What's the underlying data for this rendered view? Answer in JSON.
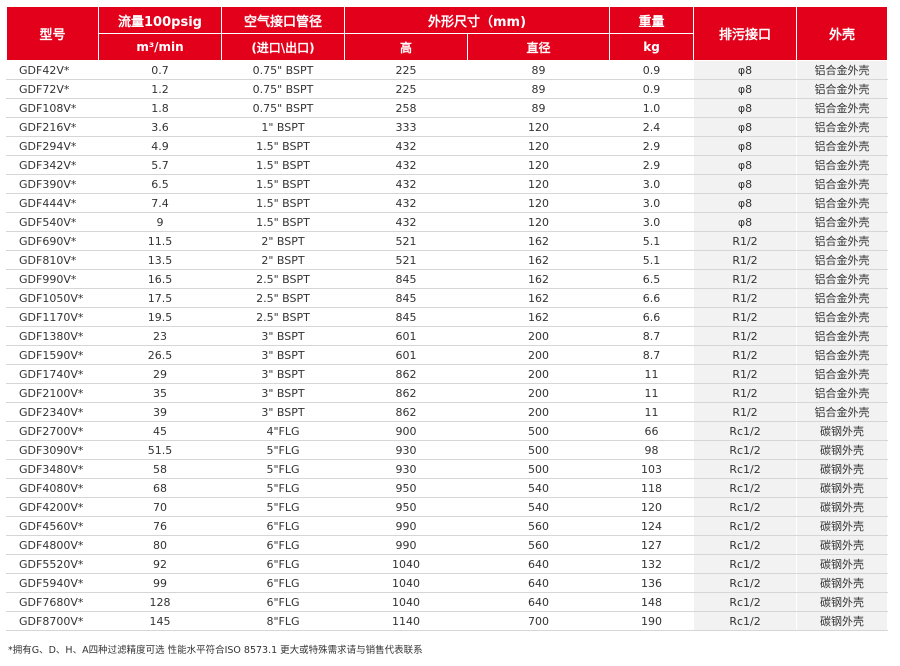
{
  "header": {
    "model": "型号",
    "flow": "流量100psig",
    "flow_unit": "m³/min",
    "port": "空气接口管径",
    "port_sub": "(进口\\出口)",
    "dims": "外形尺寸（mm)",
    "height": "高",
    "diameter": "直径",
    "weight": "重量",
    "weight_unit": "kg",
    "drain": "排污接口",
    "housing": "外壳"
  },
  "colors": {
    "header_bg": "#e3001b",
    "shaded_cell": "#f2f2f2"
  },
  "rows": [
    {
      "model": "GDF42V*",
      "flow": "0.7",
      "port": "0.75\" BSPT",
      "height": "225",
      "diameter": "89",
      "weight": "0.9",
      "drain": "φ8",
      "housing": "铝合金外壳"
    },
    {
      "model": "GDF72V*",
      "flow": "1.2",
      "port": "0.75\" BSPT",
      "height": "225",
      "diameter": "89",
      "weight": "0.9",
      "drain": "φ8",
      "housing": "铝合金外壳"
    },
    {
      "model": "GDF108V*",
      "flow": "1.8",
      "port": "0.75\" BSPT",
      "height": "258",
      "diameter": "89",
      "weight": "1.0",
      "drain": "φ8",
      "housing": "铝合金外壳"
    },
    {
      "model": "GDF216V*",
      "flow": "3.6",
      "port": "1\" BSPT",
      "height": "333",
      "diameter": "120",
      "weight": "2.4",
      "drain": "φ8",
      "housing": "铝合金外壳"
    },
    {
      "model": "GDF294V*",
      "flow": "4.9",
      "port": "1.5\" BSPT",
      "height": "432",
      "diameter": "120",
      "weight": "2.9",
      "drain": "φ8",
      "housing": "铝合金外壳"
    },
    {
      "model": "GDF342V*",
      "flow": "5.7",
      "port": "1.5\" BSPT",
      "height": "432",
      "diameter": "120",
      "weight": "2.9",
      "drain": "φ8",
      "housing": "铝合金外壳"
    },
    {
      "model": "GDF390V*",
      "flow": "6.5",
      "port": "1.5\" BSPT",
      "height": "432",
      "diameter": "120",
      "weight": "3.0",
      "drain": "φ8",
      "housing": "铝合金外壳"
    },
    {
      "model": "GDF444V*",
      "flow": "7.4",
      "port": "1.5\" BSPT",
      "height": "432",
      "diameter": "120",
      "weight": "3.0",
      "drain": "φ8",
      "housing": "铝合金外壳"
    },
    {
      "model": "GDF540V*",
      "flow": "9",
      "port": "1.5\" BSPT",
      "height": "432",
      "diameter": "120",
      "weight": "3.0",
      "drain": "φ8",
      "housing": "铝合金外壳"
    },
    {
      "model": "GDF690V*",
      "flow": "11.5",
      "port": "2\" BSPT",
      "height": "521",
      "diameter": "162",
      "weight": "5.1",
      "drain": "R1/2",
      "housing": "铝合金外壳"
    },
    {
      "model": "GDF810V*",
      "flow": "13.5",
      "port": "2\" BSPT",
      "height": "521",
      "diameter": "162",
      "weight": "5.1",
      "drain": "R1/2",
      "housing": "铝合金外壳"
    },
    {
      "model": "GDF990V*",
      "flow": "16.5",
      "port": "2.5\" BSPT",
      "height": "845",
      "diameter": "162",
      "weight": "6.5",
      "drain": "R1/2",
      "housing": "铝合金外壳"
    },
    {
      "model": "GDF1050V*",
      "flow": "17.5",
      "port": "2.5\" BSPT",
      "height": "845",
      "diameter": "162",
      "weight": "6.6",
      "drain": "R1/2",
      "housing": "铝合金外壳"
    },
    {
      "model": "GDF1170V*",
      "flow": "19.5",
      "port": "2.5\" BSPT",
      "height": "845",
      "diameter": "162",
      "weight": "6.6",
      "drain": "R1/2",
      "housing": "铝合金外壳"
    },
    {
      "model": "GDF1380V*",
      "flow": "23",
      "port": "3\" BSPT",
      "height": "601",
      "diameter": "200",
      "weight": "8.7",
      "drain": "R1/2",
      "housing": "铝合金外壳"
    },
    {
      "model": "GDF1590V*",
      "flow": "26.5",
      "port": "3\" BSPT",
      "height": "601",
      "diameter": "200",
      "weight": "8.7",
      "drain": "R1/2",
      "housing": "铝合金外壳"
    },
    {
      "model": "GDF1740V*",
      "flow": "29",
      "port": "3\" BSPT",
      "height": "862",
      "diameter": "200",
      "weight": "11",
      "drain": "R1/2",
      "housing": "铝合金外壳"
    },
    {
      "model": "GDF2100V*",
      "flow": "35",
      "port": "3\" BSPT",
      "height": "862",
      "diameter": "200",
      "weight": "11",
      "drain": "R1/2",
      "housing": "铝合金外壳"
    },
    {
      "model": "GDF2340V*",
      "flow": "39",
      "port": "3\" BSPT",
      "height": "862",
      "diameter": "200",
      "weight": "11",
      "drain": "R1/2",
      "housing": "铝合金外壳"
    },
    {
      "model": "GDF2700V*",
      "flow": "45",
      "port": "4\"FLG",
      "height": "900",
      "diameter": "500",
      "weight": "66",
      "drain": "Rc1/2",
      "housing": "碳钢外壳"
    },
    {
      "model": "GDF3090V*",
      "flow": "51.5",
      "port": "5\"FLG",
      "height": "930",
      "diameter": "500",
      "weight": "98",
      "drain": "Rc1/2",
      "housing": "碳钢外壳"
    },
    {
      "model": "GDF3480V*",
      "flow": "58",
      "port": "5\"FLG",
      "height": "930",
      "diameter": "500",
      "weight": "103",
      "drain": "Rc1/2",
      "housing": "碳钢外壳"
    },
    {
      "model": "GDF4080V*",
      "flow": "68",
      "port": "5\"FLG",
      "height": "950",
      "diameter": "540",
      "weight": "118",
      "drain": "Rc1/2",
      "housing": "碳钢外壳"
    },
    {
      "model": "GDF4200V*",
      "flow": "70",
      "port": "5\"FLG",
      "height": "950",
      "diameter": "540",
      "weight": "120",
      "drain": "Rc1/2",
      "housing": "碳钢外壳"
    },
    {
      "model": "GDF4560V*",
      "flow": "76",
      "port": "6\"FLG",
      "height": "990",
      "diameter": "560",
      "weight": "124",
      "drain": "Rc1/2",
      "housing": "碳钢外壳"
    },
    {
      "model": "GDF4800V*",
      "flow": "80",
      "port": "6\"FLG",
      "height": "990",
      "diameter": "560",
      "weight": "127",
      "drain": "Rc1/2",
      "housing": "碳钢外壳"
    },
    {
      "model": "GDF5520V*",
      "flow": "92",
      "port": "6\"FLG",
      "height": "1040",
      "diameter": "640",
      "weight": "132",
      "drain": "Rc1/2",
      "housing": "碳钢外壳"
    },
    {
      "model": "GDF5940V*",
      "flow": "99",
      "port": "6\"FLG",
      "height": "1040",
      "diameter": "640",
      "weight": "136",
      "drain": "Rc1/2",
      "housing": "碳钢外壳"
    },
    {
      "model": "GDF7680V*",
      "flow": "128",
      "port": "6\"FLG",
      "height": "1040",
      "diameter": "640",
      "weight": "148",
      "drain": "Rc1/2",
      "housing": "碳钢外壳"
    },
    {
      "model": "GDF8700V*",
      "flow": "145",
      "port": "8\"FLG",
      "height": "1140",
      "diameter": "700",
      "weight": "190",
      "drain": "Rc1/2",
      "housing": "碳钢外壳"
    }
  ],
  "footnote": "*拥有G、D、H、A四种过滤精度可选 性能水平符合ISO 8573.1 更大或特殊需求请与销售代表联系"
}
